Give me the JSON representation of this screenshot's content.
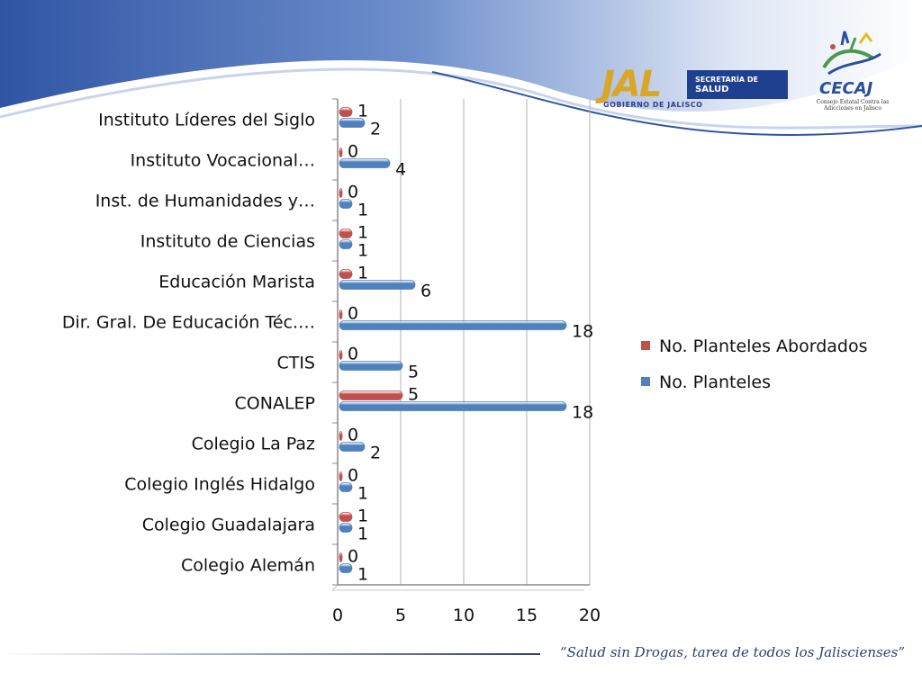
{
  "header": {
    "jal_word": "JAL",
    "jal_sub": "GOBIERNO DE JALISCO",
    "jal_box_line1": "SECRETARÍA DE",
    "jal_box_line2": "SALUD",
    "cecaj_word": "CECAJ",
    "cecaj_sub": "Consejo Estatal Contra las Adicciones en Jalisco",
    "accent_blue": "#2a4f9c",
    "accent_gold": "#d9a625"
  },
  "footer": {
    "slogan": "“Salud sin Drogas, tarea de todos los Jaliscienses”"
  },
  "chart_data": {
    "type": "bar",
    "orientation": "horizontal",
    "categories": [
      "Instituto Líderes del Siglo",
      "Instituto Vocacional…",
      "Inst. de Humanidades y…",
      "Instituto de Ciencias",
      "Educación Marista",
      "Dir. Gral. De Educación Téc.…",
      "CTIS",
      "CONALEP",
      "Colegio La Paz",
      "Colegio Inglés Hidalgo",
      "Colegio Guadalajara",
      "Colegio Alemán"
    ],
    "series": [
      {
        "name": "No. Planteles Abordados",
        "color": "#c0504d",
        "values": [
          1,
          0,
          0,
          1,
          1,
          0,
          0,
          5,
          0,
          0,
          1,
          0
        ]
      },
      {
        "name": "No. Planteles",
        "color": "#4f81bd",
        "values": [
          2,
          4,
          1,
          1,
          6,
          18,
          5,
          18,
          2,
          1,
          1,
          1
        ]
      }
    ],
    "xlim": [
      0,
      20
    ],
    "xticks": [
      0,
      5,
      10,
      15,
      20
    ],
    "legend_position": "right",
    "grid": true
  }
}
